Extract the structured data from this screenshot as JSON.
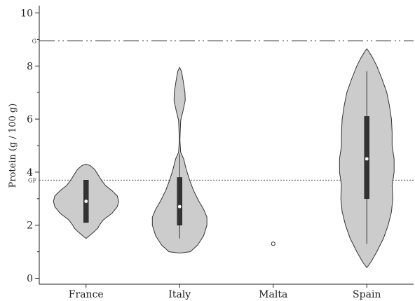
{
  "chart_data": {
    "type": "violin",
    "ylabel": "Protein (g / 100 g)",
    "ylim": [
      -0.2,
      10.2
    ],
    "yticks": [
      0,
      2,
      4,
      6,
      8,
      10
    ],
    "categories": [
      "France",
      "Italy",
      "Malta",
      "Spain"
    ],
    "reference_lines": [
      {
        "label": "G",
        "value": 8.95,
        "style": "dash-dot-dot"
      },
      {
        "label": "GF",
        "value": 3.7,
        "style": "dotted"
      }
    ],
    "violins": [
      {
        "category": "France",
        "whisker": [
          2.1,
          3.7
        ],
        "box": [
          2.1,
          3.7
        ],
        "median": 2.9,
        "outliers": [],
        "density": [
          [
            1.5,
            0.0
          ],
          [
            1.6,
            0.25
          ],
          [
            1.75,
            0.6
          ],
          [
            1.9,
            0.9
          ],
          [
            2.0,
            1.0
          ],
          [
            2.2,
            1.3
          ],
          [
            2.45,
            1.95
          ],
          [
            2.7,
            2.35
          ],
          [
            2.9,
            2.45
          ],
          [
            3.1,
            2.35
          ],
          [
            3.3,
            1.95
          ],
          [
            3.5,
            1.45
          ],
          [
            3.7,
            1.15
          ],
          [
            3.9,
            0.9
          ],
          [
            4.1,
            0.65
          ],
          [
            4.25,
            0.3
          ],
          [
            4.3,
            0.0
          ]
        ]
      },
      {
        "category": "Italy",
        "whisker": [
          1.5,
          4.7
        ],
        "box": [
          2.0,
          3.8
        ],
        "median": 2.7,
        "outliers": [],
        "density": [
          [
            0.95,
            0.0
          ],
          [
            1.0,
            0.8
          ],
          [
            1.25,
            1.35
          ],
          [
            1.6,
            1.8
          ],
          [
            2.0,
            2.05
          ],
          [
            2.3,
            2.05
          ],
          [
            2.6,
            1.8
          ],
          [
            2.9,
            1.45
          ],
          [
            3.3,
            1.05
          ],
          [
            3.7,
            0.75
          ],
          [
            4.1,
            0.5
          ],
          [
            4.5,
            0.3
          ],
          [
            4.75,
            0.08
          ],
          [
            5.2,
            0.02
          ],
          [
            5.6,
            0.05
          ],
          [
            5.95,
            0.08
          ],
          [
            6.3,
            0.25
          ],
          [
            6.7,
            0.42
          ],
          [
            7.0,
            0.4
          ],
          [
            7.4,
            0.28
          ],
          [
            7.8,
            0.14
          ],
          [
            7.95,
            0.0
          ]
        ]
      },
      {
        "category": "Malta",
        "whisker": [],
        "box": [],
        "median": null,
        "outliers": [
          1.3
        ],
        "density": []
      },
      {
        "category": "Spain",
        "whisker": [
          1.3,
          7.8
        ],
        "box": [
          3.0,
          6.1
        ],
        "median": 4.5,
        "outliers": [],
        "density": [
          [
            0.4,
            0.0
          ],
          [
            0.6,
            0.3
          ],
          [
            1.0,
            0.75
          ],
          [
            1.5,
            1.25
          ],
          [
            2.0,
            1.6
          ],
          [
            2.5,
            1.85
          ],
          [
            3.0,
            1.95
          ],
          [
            3.5,
            1.9
          ],
          [
            4.0,
            2.05
          ],
          [
            4.5,
            2.05
          ],
          [
            5.0,
            1.9
          ],
          [
            5.5,
            1.9
          ],
          [
            6.0,
            1.85
          ],
          [
            6.5,
            1.7
          ],
          [
            7.0,
            1.5
          ],
          [
            7.5,
            1.15
          ],
          [
            8.0,
            0.75
          ],
          [
            8.3,
            0.45
          ],
          [
            8.55,
            0.15
          ],
          [
            8.65,
            0.0
          ]
        ]
      }
    ]
  }
}
